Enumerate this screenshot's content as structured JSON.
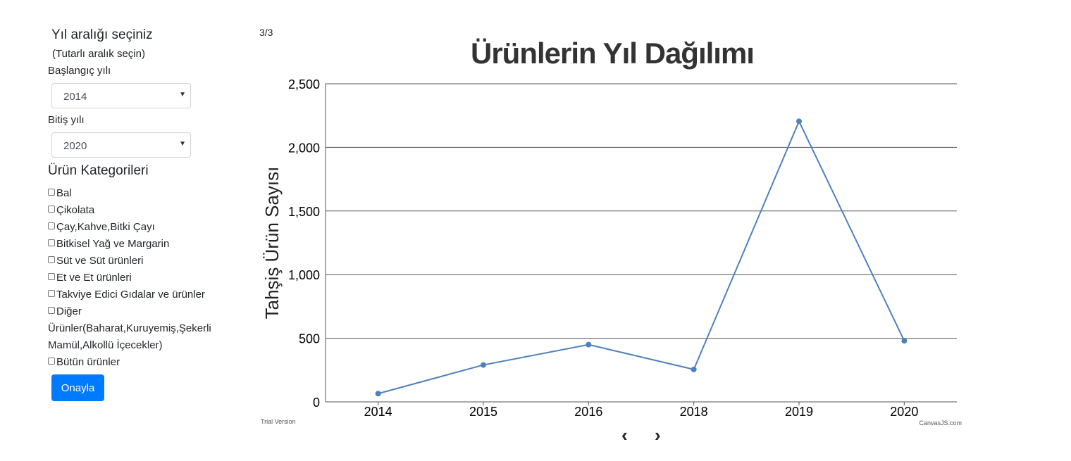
{
  "sidebar": {
    "range_title": "Yıl aralığı seçiniz",
    "range_hint": "(Tutarlı aralık seçin)",
    "start_label": "Başlangıç yılı",
    "start_value": "2014",
    "end_label": "Bitiş yılı",
    "end_value": "2020",
    "categories_title": "Ürün Kategorileri",
    "categories": [
      "Bal",
      "Çikolata",
      "Çay,Kahve,Bitki Çayı",
      "Bitkisel Yağ ve Margarin",
      "Süt ve Süt ürünleri",
      "Et ve Et ürünleri",
      "Takviye Edici Gıdalar ve ürünler",
      "Diğer Ürünler(Baharat,Kuruyemiş,Şekerli Mamül,Alkollü İçecekler)",
      "Bütün ürünler"
    ],
    "confirm_label": "Onayla"
  },
  "pager": {
    "indicator": "3/3",
    "prev": "‹",
    "next": "›"
  },
  "chart_footer": {
    "trial": "Trial Version",
    "credit": "CanvasJS.com"
  },
  "colors": {
    "line": "#4f81bc",
    "grid": "#555555",
    "button": "#007bff"
  },
  "chart_data": {
    "type": "line",
    "title": "Ürünlerin Yıl Dağılımı",
    "ylabel": "Tahşiş Ürün Sayısı",
    "xlabel": "",
    "categories": [
      "2014",
      "2015",
      "2016",
      "2018",
      "2019",
      "2020"
    ],
    "values": [
      65,
      290,
      450,
      255,
      2205,
      480
    ],
    "ylim": [
      0,
      2500
    ],
    "yticks": [
      0,
      500,
      1000,
      1500,
      2000,
      2500
    ],
    "ytick_labels": [
      "0",
      "500",
      "1,000",
      "1,500",
      "2,000",
      "2,500"
    ],
    "grid": true,
    "legend": "none"
  }
}
